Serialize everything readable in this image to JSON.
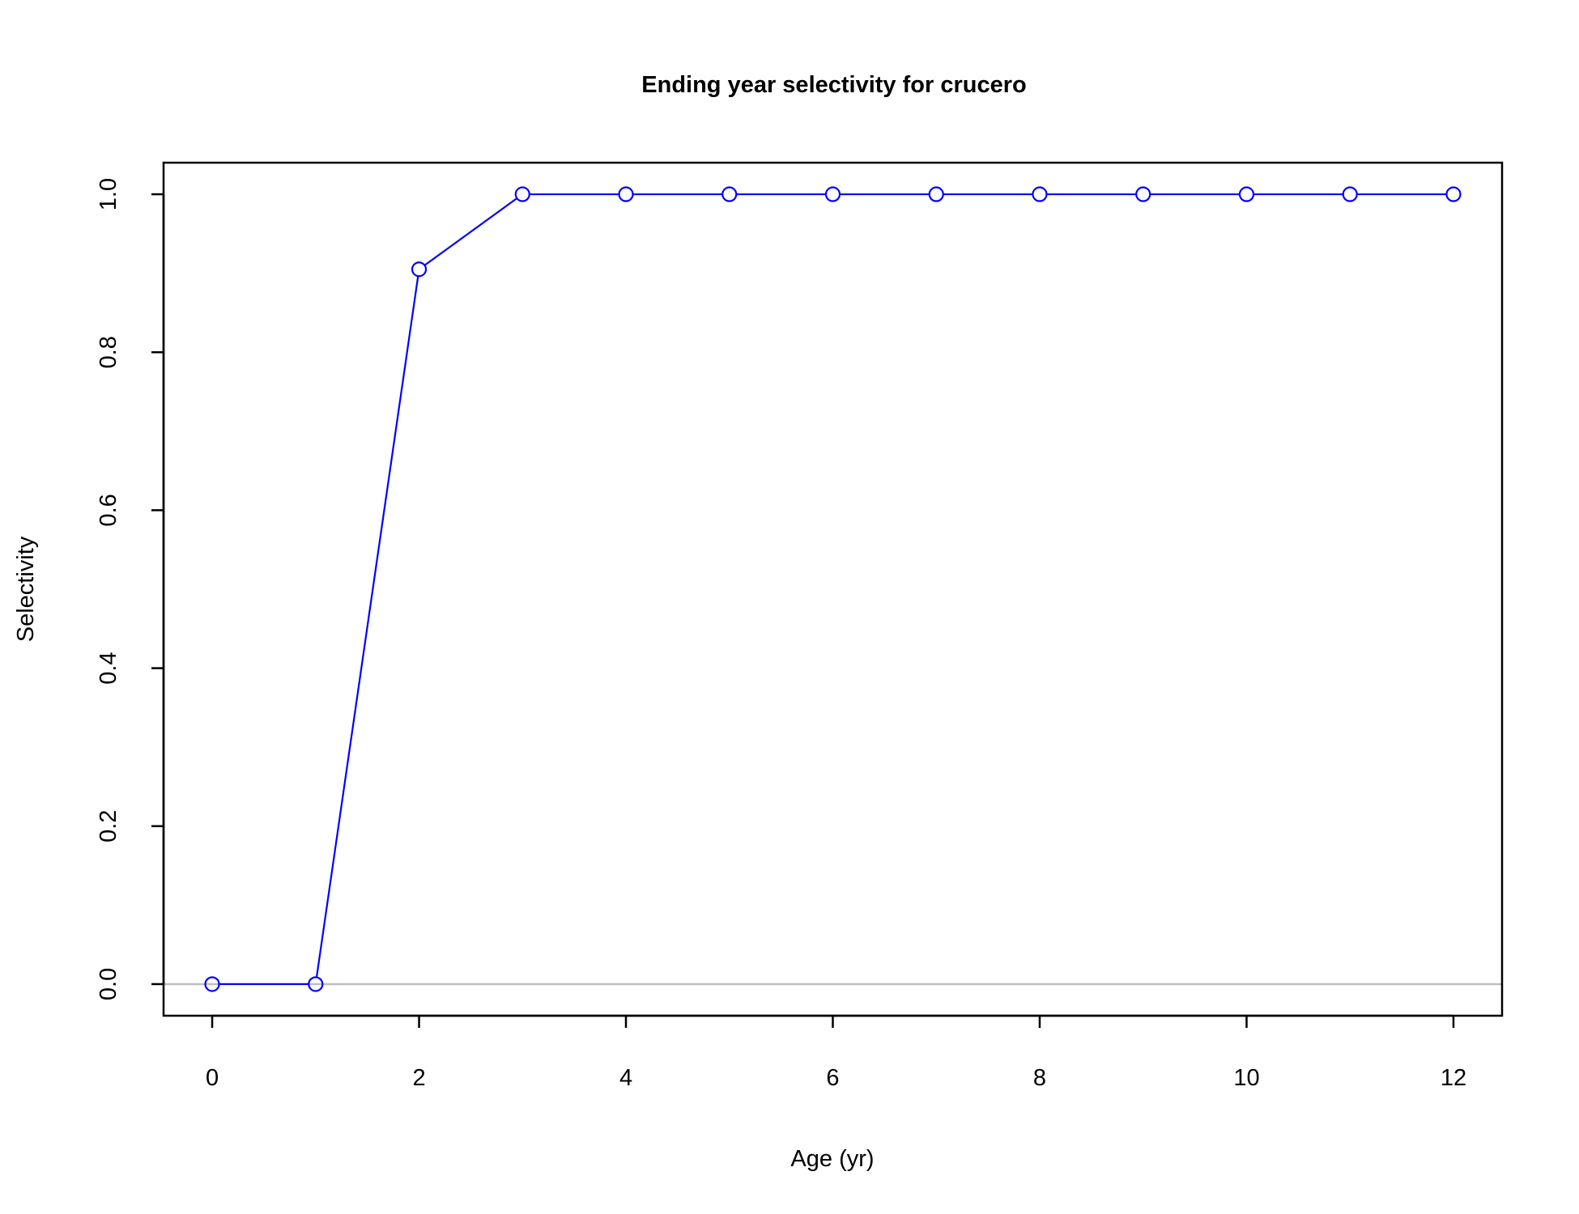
{
  "chart_data": {
    "type": "line",
    "title": "Ending year selectivity for crucero",
    "xlabel": "Age (yr)",
    "ylabel": "Selectivity",
    "x": [
      0,
      1,
      2,
      3,
      4,
      5,
      6,
      7,
      8,
      9,
      10,
      11,
      12
    ],
    "series": [
      {
        "values": [
          0.0,
          0.0,
          0.905,
          1.0,
          1.0,
          1.0,
          1.0,
          1.0,
          1.0,
          1.0,
          1.0,
          1.0,
          1.0
        ],
        "color": "#0000ff",
        "marker": "open-circle"
      }
    ],
    "xlim": [
      -0.47,
      12.47
    ],
    "ylim": [
      -0.04,
      1.04
    ],
    "x_ticks": [
      "0",
      "2",
      "4",
      "6",
      "8",
      "10",
      "12"
    ],
    "y_ticks": [
      "0.0",
      "0.2",
      "0.4",
      "0.6",
      "0.8",
      "1.0"
    ],
    "reference_line": {
      "y": 0,
      "color": "#bebebe"
    },
    "grid": false,
    "legend": "none"
  }
}
